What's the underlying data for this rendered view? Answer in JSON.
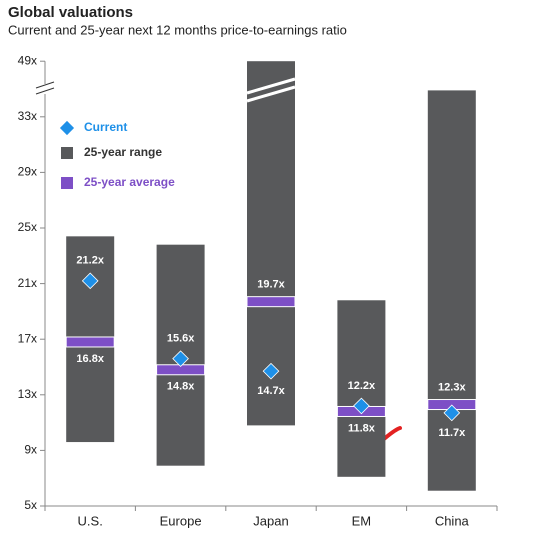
{
  "chart_data": {
    "type": "range",
    "title": "Global valuations",
    "subtitle": "Current and 25-year next 12 months price-to-earnings ratio",
    "categories": [
      "U.S.",
      "Europe",
      "Japan",
      "EM",
      "China"
    ],
    "series": [
      {
        "name": "25-year range",
        "color": "#58595b",
        "low": [
          9.6,
          7.9,
          10.8,
          7.1,
          6.1
        ],
        "high": [
          24.4,
          23.8,
          49,
          19.8,
          40.6
        ]
      },
      {
        "name": "Current",
        "color": "#1e90e8",
        "values": [
          21.2,
          15.6,
          14.7,
          12.2,
          11.7
        ],
        "value_labels": [
          "21.2x",
          "15.6x",
          "14.7x",
          "12.2x",
          "11.7x"
        ]
      },
      {
        "name": "25-year average",
        "color": "#7d4fc6",
        "values": [
          16.8,
          14.8,
          19.7,
          11.8,
          12.3
        ],
        "value_labels": [
          "16.8x",
          "14.8x",
          "19.7x",
          "11.8x",
          "12.3x"
        ]
      }
    ],
    "ylim": [
      5,
      49
    ],
    "yticks": [
      {
        "value": 5,
        "label": "5x"
      },
      {
        "value": 9,
        "label": "9x"
      },
      {
        "value": 13,
        "label": "13x"
      },
      {
        "value": 17,
        "label": "17x"
      },
      {
        "value": 21,
        "label": "21x"
      },
      {
        "value": 25,
        "label": "25x"
      },
      {
        "value": 29,
        "label": "29x"
      },
      {
        "value": 33,
        "label": "33x"
      },
      {
        "value": 49,
        "label": "49x"
      }
    ],
    "axis_break": true
  }
}
